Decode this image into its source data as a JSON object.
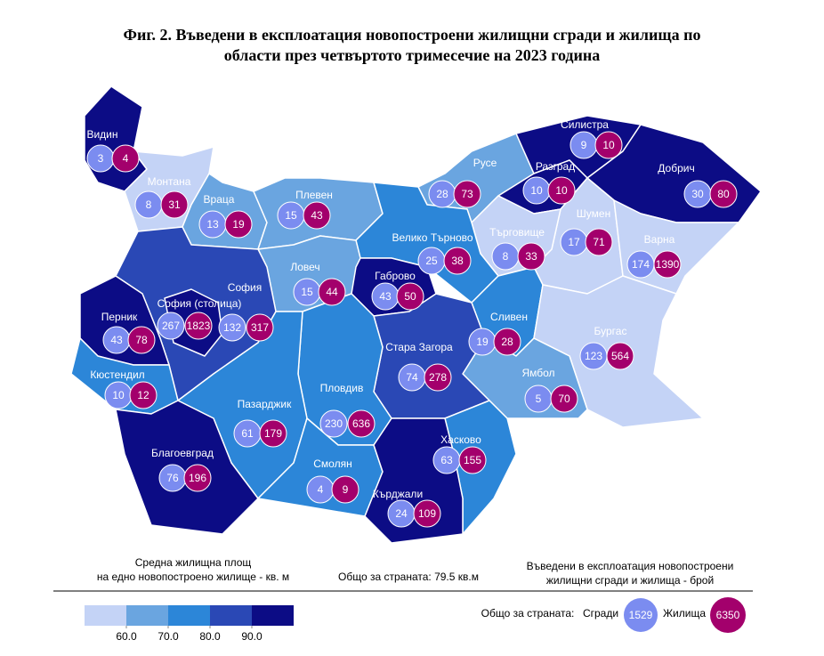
{
  "title": [
    "Фиг. 2. Въведени в експлоатация новопостроени жилищни сгради и жилища по",
    "области през четвъртото тримесечие на 2023 година"
  ],
  "regions": [
    {
      "name": "Видин",
      "buildings": 3,
      "dwellings": 4,
      "color": "#0c0c85"
    },
    {
      "name": "Монтана",
      "buildings": 8,
      "dwellings": 31,
      "color": "#c4d3f6"
    },
    {
      "name": "Враца",
      "buildings": 13,
      "dwellings": 19,
      "color": "#6aa5e0"
    },
    {
      "name": "Плевен",
      "buildings": 15,
      "dwellings": 43,
      "color": "#6aa5e0"
    },
    {
      "name": "Русе",
      "buildings": 28,
      "dwellings": 73,
      "color": "#6aa5e0"
    },
    {
      "name": "Силистра",
      "buildings": 9,
      "dwellings": 10,
      "color": "#0c0c85"
    },
    {
      "name": "Разград",
      "buildings": 10,
      "dwellings": 10,
      "color": "#0c0c85"
    },
    {
      "name": "Добрич",
      "buildings": 30,
      "dwellings": 80,
      "color": "#0c0c85"
    },
    {
      "name": "Шумен",
      "buildings": 17,
      "dwellings": 71,
      "color": "#c4d3f6"
    },
    {
      "name": "Търговище",
      "buildings": 8,
      "dwellings": 33,
      "color": "#c4d3f6"
    },
    {
      "name": "Варна",
      "buildings": 174,
      "dwellings": 1390,
      "color": "#c4d3f6"
    },
    {
      "name": "Велико Търново",
      "buildings": 25,
      "dwellings": 38,
      "color": "#2c86d8"
    },
    {
      "name": "Ловеч",
      "buildings": 15,
      "dwellings": 44,
      "color": "#6aa5e0"
    },
    {
      "name": "Габрово",
      "buildings": 43,
      "dwellings": 50,
      "color": "#0c0c85"
    },
    {
      "name": "София",
      "buildings": 132,
      "dwellings": 317,
      "color": "#2a48b5"
    },
    {
      "name": "София (столица)",
      "buildings": 267,
      "dwellings": 1823,
      "color": "#0c0c85"
    },
    {
      "name": "Перник",
      "buildings": 43,
      "dwellings": 78,
      "color": "#0c0c85"
    },
    {
      "name": "Кюстендил",
      "buildings": 10,
      "dwellings": 12,
      "color": "#2c86d8"
    },
    {
      "name": "Сливен",
      "buildings": 19,
      "dwellings": 28,
      "color": "#2c86d8"
    },
    {
      "name": "Бургас",
      "buildings": 123,
      "dwellings": 564,
      "color": "#c4d3f6"
    },
    {
      "name": "Ямбол",
      "buildings": 5,
      "dwellings": 70,
      "color": "#6aa5e0"
    },
    {
      "name": "Стара Загора",
      "buildings": 74,
      "dwellings": 278,
      "color": "#2a48b5"
    },
    {
      "name": "Пловдив",
      "buildings": 230,
      "dwellings": 636,
      "color": "#2c86d8"
    },
    {
      "name": "Пазарджик",
      "buildings": 61,
      "dwellings": 179,
      "color": "#2c86d8"
    },
    {
      "name": "Благоевград",
      "buildings": 76,
      "dwellings": 196,
      "color": "#0c0c85"
    },
    {
      "name": "Смолян",
      "buildings": 4,
      "dwellings": 9,
      "color": "#2c86d8"
    },
    {
      "name": "Хасково",
      "buildings": 63,
      "dwellings": 155,
      "color": "#2c86d8"
    },
    {
      "name": "Кърджали",
      "buildings": 24,
      "dwellings": 109,
      "color": "#0c0c85"
    }
  ],
  "legend": {
    "area_title": [
      "Средна жилищна площ",
      "на едно новопостроено жилище - кв. м"
    ],
    "colors": [
      "#c4d3f6",
      "#6aa5e0",
      "#2c86d8",
      "#2a48b5",
      "#0c0c85"
    ],
    "ticks": [
      {
        "value": 60,
        "label": "60.0"
      },
      {
        "value": 70,
        "label": "70.0"
      },
      {
        "value": 80,
        "label": "80.0"
      },
      {
        "value": 90,
        "label": "90.0"
      }
    ],
    "area_total": "Общо за страната: 79.5 кв.м",
    "count_title": [
      "Въведени в експлоатация новопостроени",
      "жилищни сгради и жилища - брой"
    ],
    "total_label": "Общо за страната:",
    "buildings_label": "Сгради",
    "buildings_total": 1529,
    "buildings_color": "#7b8cf0",
    "dwellings_label": "Жилища",
    "dwellings_total": 6350,
    "dwellings_color": "#a3006c"
  }
}
